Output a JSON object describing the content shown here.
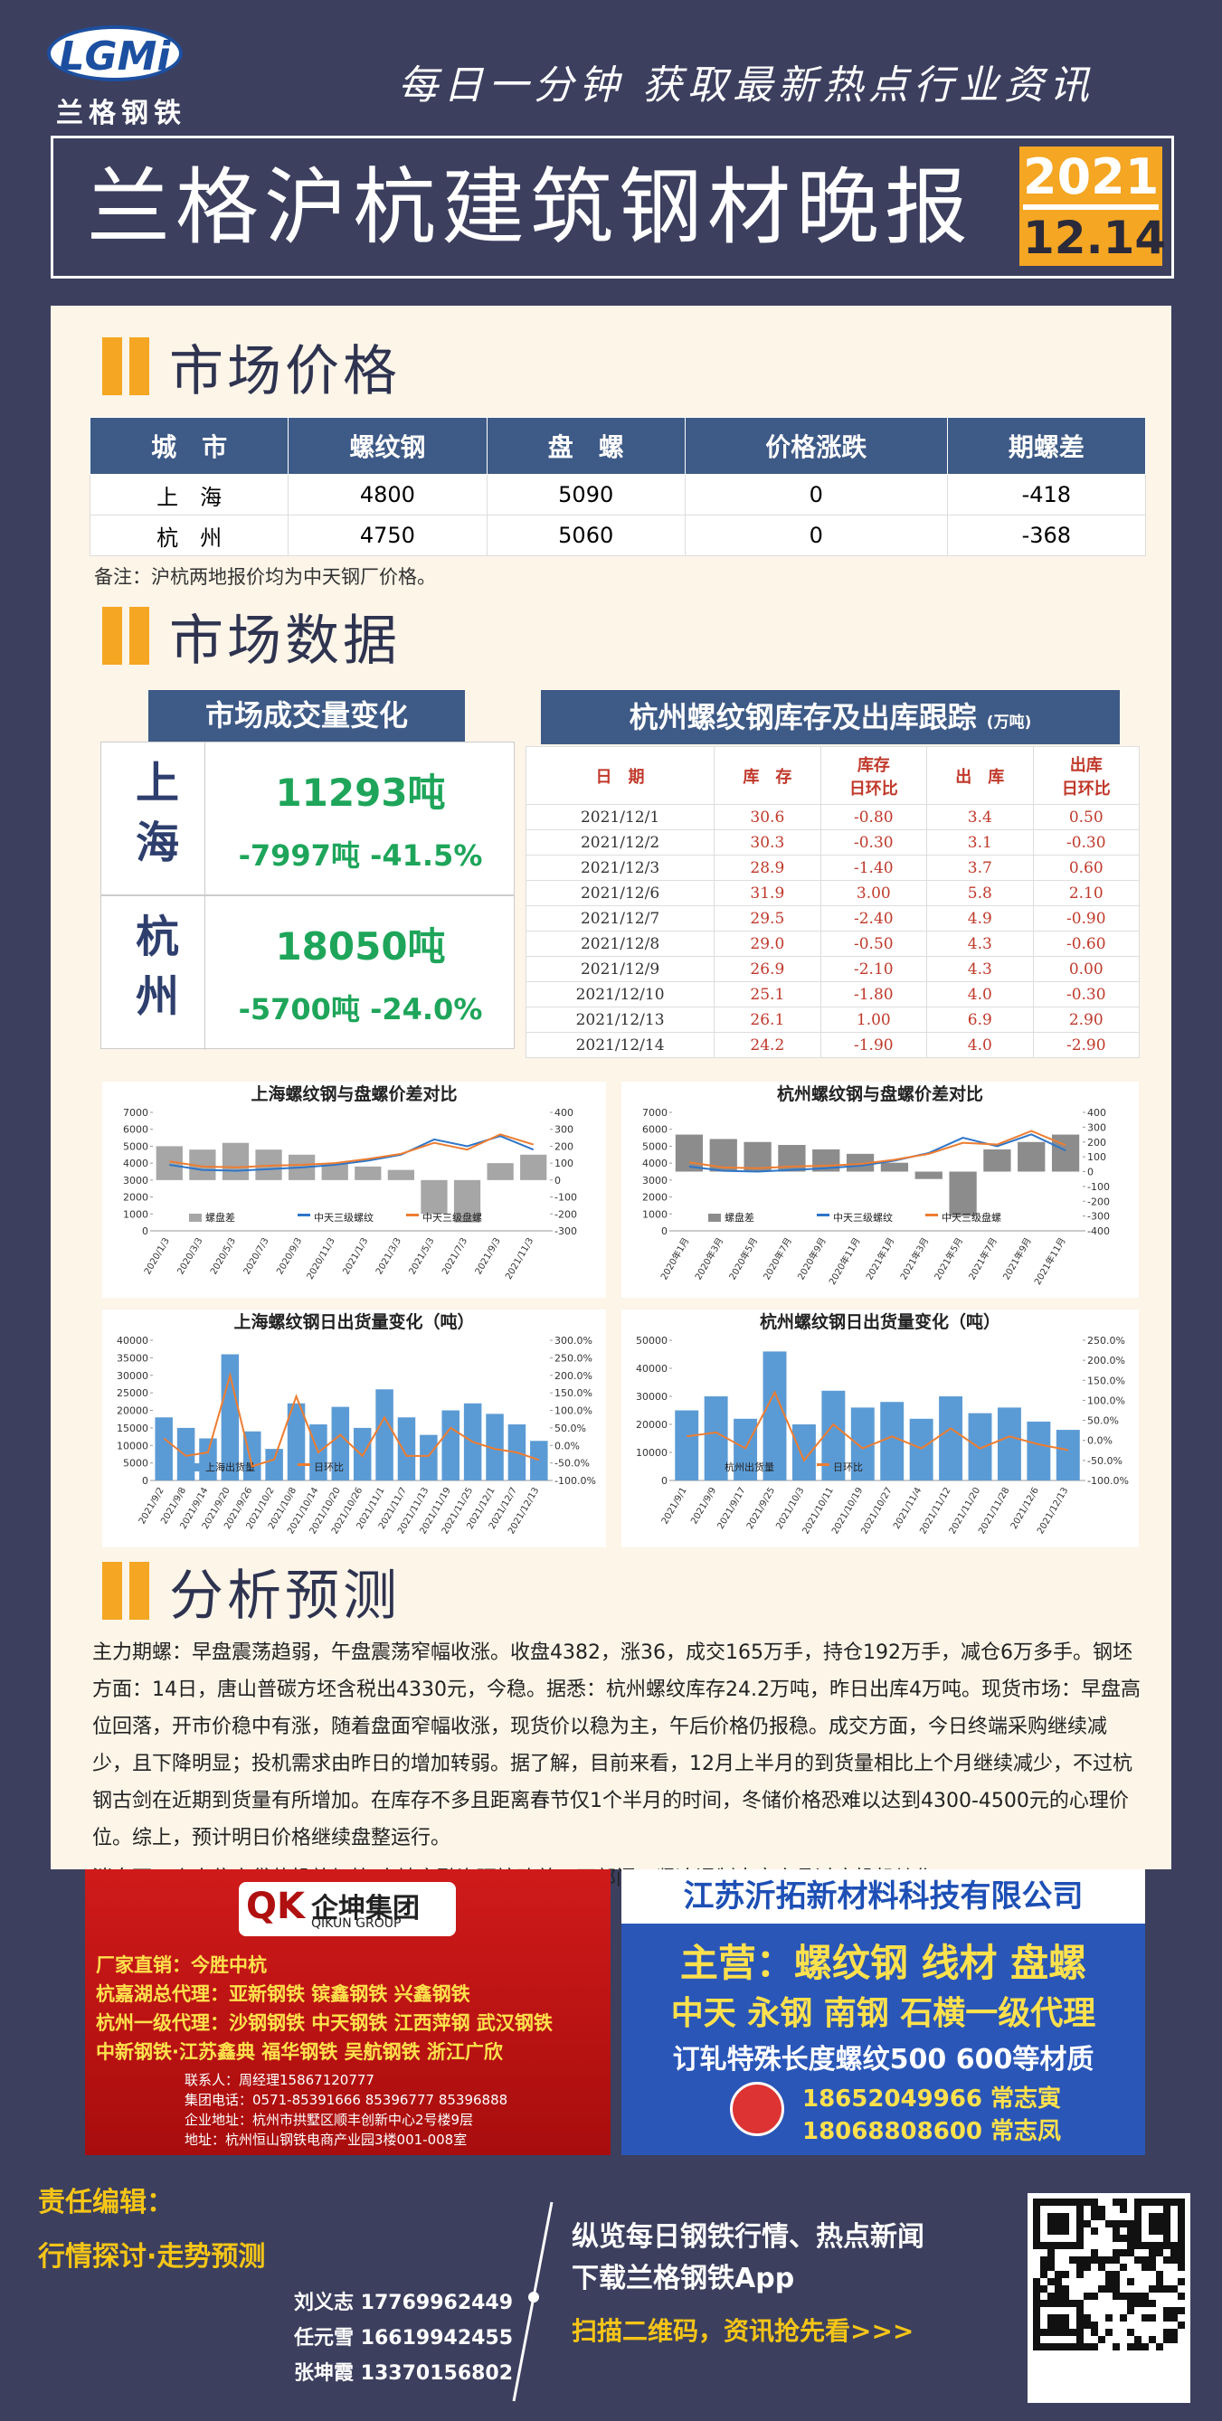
{
  "header": {
    "logo": "LGMi",
    "brand": "兰格钢铁",
    "slogan": "每日一分钟  获取最新热点行业资讯",
    "title": "兰格沪杭建筑钢材晚报",
    "year": "2021",
    "date": "12.14"
  },
  "sections": {
    "price": "市场价格",
    "data": "市场数据",
    "analysis": "分析预测"
  },
  "price_table": {
    "header": [
      "城　市",
      "螺纹钢",
      "盘　螺",
      "价格涨跌",
      "期螺差"
    ],
    "rows": [
      [
        "上　海",
        "4800",
        "5090",
        "0",
        "-418"
      ],
      [
        "杭　州",
        "4750",
        "5060",
        "0",
        "-368"
      ]
    ],
    "note": "备注：沪杭两地报价均为中天钢厂价格。"
  },
  "volume": {
    "title": "市场成交量变化",
    "cities": [
      {
        "name": "上海",
        "volume": "11293吨",
        "change": "-7997吨 -41.5%"
      },
      {
        "name": "杭州",
        "volume": "18050吨",
        "change": "-5700吨 -24.0%"
      }
    ]
  },
  "inventory": {
    "title": "杭州螺纹钢库存及出库跟踪",
    "unit": "(万吨)",
    "header": [
      "日　期",
      "库　存",
      "库存\n日环比",
      "出　库",
      "出库\n日环比"
    ],
    "rows": [
      [
        "2021/12/1",
        "30.6",
        "-0.80",
        "3.4",
        "0.50"
      ],
      [
        "2021/12/2",
        "30.3",
        "-0.30",
        "3.1",
        "-0.30"
      ],
      [
        "2021/12/3",
        "28.9",
        "-1.40",
        "3.7",
        "0.60"
      ],
      [
        "2021/12/6",
        "31.9",
        "3.00",
        "5.8",
        "2.10"
      ],
      [
        "2021/12/7",
        "29.5",
        "-2.40",
        "4.9",
        "-0.90"
      ],
      [
        "2021/12/8",
        "29.0",
        "-0.50",
        "4.3",
        "-0.60"
      ],
      [
        "2021/12/9",
        "26.9",
        "-2.10",
        "4.3",
        "0.00"
      ],
      [
        "2021/12/10",
        "25.1",
        "-1.80",
        "4.0",
        "-0.30"
      ],
      [
        "2021/12/13",
        "26.1",
        "1.00",
        "6.9",
        "2.90"
      ],
      [
        "2021/12/14",
        "24.2",
        "-1.90",
        "4.0",
        "-2.90"
      ]
    ]
  },
  "charts": [
    {
      "title": "上海螺纹钢与盘螺价差对比",
      "categories": [
        "2020/1/3",
        "2020/3/3",
        "2020/5/3",
        "2020/7/3",
        "2020/9/3",
        "2020/11/3",
        "2021/1/3",
        "2021/3/3",
        "2021/5/3",
        "2021/7/3",
        "2021/9/3",
        "2021/11/3"
      ],
      "ylim": [
        0,
        7000
      ],
      "yticks": [
        0,
        1000,
        2000,
        3000,
        4000,
        5000,
        6000,
        7000
      ],
      "y2lim": [
        -300,
        400
      ],
      "y2ticks": [
        -300,
        -200,
        -100,
        0,
        100,
        200,
        300,
        400
      ],
      "series": [
        {
          "name": "螺盘差",
          "type": "bar",
          "axis": "y2",
          "color": "#a6a6a6",
          "values": [
            200,
            180,
            220,
            180,
            150,
            100,
            80,
            60,
            -200,
            -250,
            100,
            150
          ]
        },
        {
          "name": "中天三级螺纹",
          "type": "line",
          "color": "#2e75c8",
          "values": [
            3900,
            3600,
            3550,
            3650,
            3750,
            3900,
            4150,
            4500,
            5400,
            5000,
            5600,
            4800
          ]
        },
        {
          "name": "中天三级盘螺",
          "type": "line",
          "color": "#ed7d31",
          "values": [
            4100,
            3800,
            3750,
            3850,
            3900,
            4000,
            4250,
            4550,
            5200,
            4800,
            5700,
            5100
          ]
        }
      ]
    },
    {
      "title": "杭州螺纹钢与盘螺价差对比",
      "categories": [
        "2020年1月",
        "2020年3月",
        "2020年5月",
        "2020年7月",
        "2020年9月",
        "2020年11月",
        "2021年1月",
        "2021年3月",
        "2021年5月",
        "2021年7月",
        "2021年9月",
        "2021年11月"
      ],
      "ylim": [
        0,
        7000
      ],
      "yticks": [
        0,
        1000,
        2000,
        3000,
        4000,
        5000,
        6000,
        7000
      ],
      "y2lim": [
        -400,
        400
      ],
      "y2ticks": [
        -400,
        -300,
        -200,
        -100,
        0,
        100,
        200,
        300,
        400
      ],
      "series": [
        {
          "name": "螺盘差",
          "type": "bar",
          "axis": "y2",
          "color": "#8c8c8c",
          "values": [
            250,
            220,
            200,
            180,
            150,
            120,
            60,
            -50,
            -300,
            150,
            200,
            250
          ]
        },
        {
          "name": "中天三级螺纹",
          "type": "line",
          "color": "#2e75c8",
          "values": [
            3800,
            3550,
            3500,
            3600,
            3700,
            3850,
            4150,
            4600,
            5500,
            5000,
            5700,
            4750
          ]
        },
        {
          "name": "中天三级盘螺",
          "type": "line",
          "color": "#ed7d31",
          "values": [
            4050,
            3750,
            3700,
            3800,
            3850,
            3950,
            4200,
            4550,
            5200,
            5100,
            5900,
            5060
          ]
        }
      ]
    },
    {
      "title": "上海螺纹钢日出货量变化（吨）",
      "categories": [
        "2021/9/2",
        "2021/9/8",
        "2021/9/14",
        "2021/9/20",
        "2021/9/26",
        "2021/10/2",
        "2021/10/8",
        "2021/10/14",
        "2021/10/20",
        "2021/10/26",
        "2021/11/1",
        "2021/11/7",
        "2021/11/13",
        "2021/11/19",
        "2021/11/25",
        "2021/12/1",
        "2021/12/7",
        "2021/12/13"
      ],
      "ylim": [
        0,
        40000
      ],
      "yticks": [
        0,
        5000,
        10000,
        15000,
        20000,
        25000,
        30000,
        35000,
        40000
      ],
      "y2lim": [
        -100,
        300
      ],
      "y2ticks": [
        {
          "value": -100,
          "label": "-100.0%"
        },
        {
          "value": -50,
          "label": "-50.0%"
        },
        {
          "value": 0,
          "label": "0.0%"
        },
        {
          "value": 50,
          "label": "50.0%"
        },
        {
          "value": 100,
          "label": "100.0%"
        },
        {
          "value": 150,
          "label": "150.0%"
        },
        {
          "value": 200,
          "label": "200.0%"
        },
        {
          "value": 250,
          "label": "250.0%"
        },
        {
          "value": 300,
          "label": "300.0%"
        }
      ],
      "series": [
        {
          "name": "上海出货量",
          "type": "bar",
          "color": "#5b9bd5",
          "values": [
            18000,
            15000,
            12000,
            36000,
            14000,
            9000,
            22000,
            16000,
            21000,
            15000,
            26000,
            18000,
            13000,
            20000,
            22000,
            19000,
            16000,
            11293
          ]
        },
        {
          "name": "日环比",
          "type": "line",
          "axis": "y2",
          "color": "#ed7d31",
          "values": [
            20,
            -30,
            -20,
            200,
            -60,
            -40,
            140,
            -20,
            30,
            -30,
            80,
            -30,
            -30,
            50,
            10,
            -10,
            -20,
            -41.5
          ]
        }
      ]
    },
    {
      "title": "杭州螺纹钢日出货量变化（吨）",
      "categories": [
        "2021/9/1",
        "2021/9/9",
        "2021/9/17",
        "2021/9/25",
        "2021/10/3",
        "2021/10/11",
        "2021/10/19",
        "2021/10/27",
        "2021/11/4",
        "2021/11/12",
        "2021/11/20",
        "2021/11/28",
        "2021/12/6",
        "2021/12/13"
      ],
      "ylim": [
        0,
        50000
      ],
      "yticks": [
        0,
        10000,
        20000,
        30000,
        40000,
        50000
      ],
      "y2lim": [
        -100,
        250
      ],
      "y2ticks": [
        {
          "value": -100,
          "label": "-100.0%"
        },
        {
          "value": -50,
          "label": "-50.0%"
        },
        {
          "value": 0,
          "label": "0.0%"
        },
        {
          "value": 50,
          "label": "50.0%"
        },
        {
          "value": 100,
          "label": "100.0%"
        },
        {
          "value": 150,
          "label": "150.0%"
        },
        {
          "value": 200,
          "label": "200.0%"
        },
        {
          "value": 250,
          "label": "250.0%"
        }
      ],
      "series": [
        {
          "name": "杭州出货量",
          "type": "bar",
          "color": "#5b9bd5",
          "values": [
            25000,
            30000,
            22000,
            46000,
            20000,
            32000,
            26000,
            28000,
            22000,
            30000,
            24000,
            26000,
            21000,
            18050
          ]
        },
        {
          "name": "日环比",
          "type": "line",
          "axis": "y2",
          "color": "#ed7d31",
          "values": [
            10,
            20,
            -20,
            120,
            -50,
            40,
            -20,
            10,
            -20,
            30,
            -20,
            10,
            -10,
            -24
          ]
        }
      ]
    }
  ],
  "analysis": {
    "paragraphs": [
      "主力期螺：早盘震荡趋弱，午盘震荡窄幅收涨。收盘4382，涨36，成交165万手，持仓192万手，减仓6万多手。钢坯方面：14日，唐山普碳方坯含税出4330元，今稳。据悉：杭州螺纹库存24.2万吨，昨日出库4万吨。现货市场：早盘高位回落，开市价稳中有涨，随着盘面窄幅收涨，现货价以稳为主，午后价格仍报稳。成交方面，今日终端采购继续减少，且下降明显；投机需求由昨日的增加转弱。据了解，目前来看，12月上半月的到货量相比上个月继续减少，不过杭钢古剑在近期到货量有所增加。在库存不多且距离春节仅1个半月的时间，冬储价格恐难以达到4300-4500元的心理价位。综上，预计明日价格继续盘整运行。",
      "消息面：个人住房贷款投放加快 房地产融资环境改善；两部门：坚决遏制大宗商品过度投机炒作。"
    ]
  },
  "ads": {
    "left": {
      "logo": "QK",
      "company": "企坤集团",
      "english": "QIKUN GROUP",
      "lines": [
        "厂家直销：今胜中杭",
        "杭嘉湖总代理：亚新钢铁  镔鑫钢铁  兴鑫钢铁",
        "杭州一级代理：沙钢钢铁 中天钢铁 江西萍钢 武汉钢铁",
        "中新钢铁·江苏鑫典 福华钢铁 吴航钢铁 浙江广欣"
      ],
      "contacts": [
        "联系人：周经理15867120777",
        "集团电话：0571-85391666 85396777 85396888",
        "企业地址：杭州市拱墅区顺丰创新中心2号楼9层",
        "地址：杭州恒山钢铁电商产业园3楼001-008室"
      ]
    },
    "right": {
      "company": "江苏沂拓新材料科技有限公司",
      "main": "主营：螺纹钢 线材 盘螺",
      "agents": "中天 永钢 南钢 石横一级代理",
      "special": "订轧特殊长度螺纹500 600等材质",
      "phones": [
        "18652049966 常志寅",
        "18068808600 常志凤"
      ]
    }
  },
  "footer": {
    "editor_label": "责任编辑：",
    "tagline": "行情探讨·走势预测",
    "editors": [
      "刘义志 17769962449",
      "任元雪 16619942455",
      "张坤霞 13370156802"
    ],
    "promo": [
      "纵览每日钢铁行情、热点新闻",
      "下载兰格钢铁App"
    ],
    "scan": "扫描二维码，资讯抢先看>>>"
  }
}
